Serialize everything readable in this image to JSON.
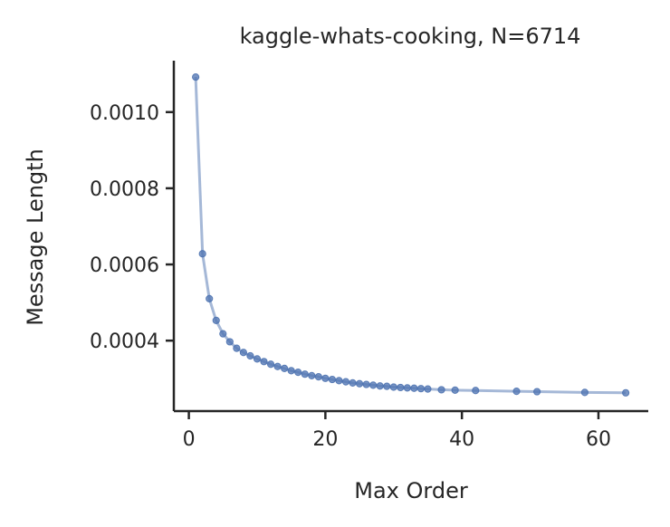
{
  "chart_data": {
    "type": "line",
    "title": "kaggle-whats-cooking, N=6714",
    "xlabel": "Max Order",
    "ylabel": "Message Length",
    "xlim": [
      -2.2,
      67.3
    ],
    "ylim": [
      0.000215,
      0.001135
    ],
    "x_ticks": [
      0,
      20,
      40,
      60
    ],
    "x_tick_labels": [
      "0",
      "20",
      "40",
      "60"
    ],
    "y_ticks": [
      0.0004,
      0.0006,
      0.0008,
      0.001
    ],
    "y_tick_labels": [
      "0.0004",
      "0.0006",
      "0.0008",
      "0.0010"
    ],
    "grid": false,
    "legend": "none",
    "series": [
      {
        "color": "#4c72b0",
        "line_opacity": 0.5,
        "marker": "circle",
        "x": [
          1,
          2,
          3,
          4,
          5,
          6,
          7,
          8,
          9,
          10,
          11,
          12,
          13,
          14,
          15,
          16,
          17,
          18,
          19,
          20,
          21,
          22,
          23,
          24,
          25,
          26,
          27,
          28,
          29,
          30,
          31,
          32,
          33,
          34,
          35,
          37,
          39,
          42,
          48,
          51,
          58,
          64
        ],
        "y": [
          0.001092,
          0.000628,
          0.00051,
          0.000453,
          0.000418,
          0.000397,
          0.00038,
          0.000369,
          0.00036,
          0.000352,
          0.000345,
          0.000338,
          0.000332,
          0.000327,
          0.000321,
          0.000317,
          0.000312,
          0.000308,
          0.000305,
          0.000301,
          0.000298,
          0.000295,
          0.000292,
          0.000289,
          0.000287,
          0.000285,
          0.000283,
          0.000281,
          0.00028,
          0.000278,
          0.000277,
          0.000276,
          0.000275,
          0.000274,
          0.000273,
          0.000271,
          0.00027,
          0.000269,
          0.000267,
          0.000266,
          0.000264,
          0.000263
        ]
      }
    ]
  }
}
